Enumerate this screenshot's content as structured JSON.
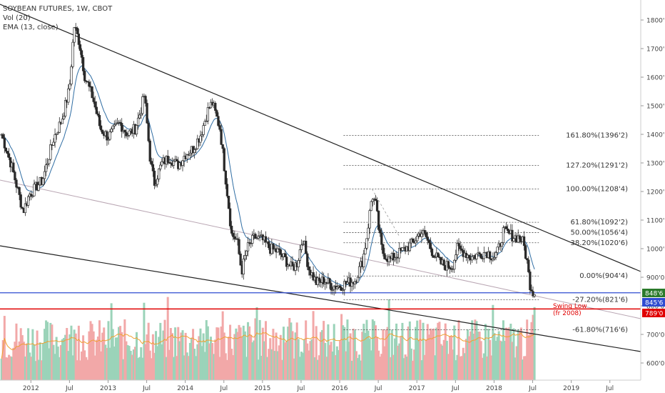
{
  "header": {
    "title": "SOYBEAN FUTURES, 1W, CBOT",
    "vol": "Vol (20)",
    "ema": "EMA (13, close)"
  },
  "colors": {
    "up": "#9bd3b9",
    "down": "#f2a8a8",
    "candle": "#2a2a2a",
    "ema": "#2f6da3",
    "vol_ma": "#f0a030",
    "support_blue": "#2e4bd1",
    "swing_red": "#e00000",
    "price_tag_green": "#2b7a2b"
  },
  "chart_data": {
    "type": "candlestick",
    "title": "SOYBEAN FUTURES, 1W, CBOT",
    "x_labels": [
      "2012",
      "Jul",
      "2013",
      "Jul",
      "2014",
      "Jul",
      "2015",
      "Jul",
      "2016",
      "Jul",
      "2017",
      "Jul",
      "2018",
      "Jul",
      "2019",
      "Jul"
    ],
    "y_labels": [
      "1800'0",
      "1700'0",
      "1600'0",
      "1500'0",
      "1400'0",
      "1300'0",
      "1200'0",
      "1100'0",
      "1000'0",
      "900'0",
      "800'0",
      "700'0",
      "600'0"
    ],
    "ylim": [
      570,
      1860
    ],
    "xlim": [
      2011.6,
      2019.9
    ],
    "grid": false,
    "price_path": [
      [
        2011.62,
        1400
      ],
      [
        2011.75,
        1290
      ],
      [
        2011.9,
        1130
      ],
      [
        2011.98,
        1190
      ],
      [
        2012.05,
        1210
      ],
      [
        2012.15,
        1240
      ],
      [
        2012.3,
        1390
      ],
      [
        2012.4,
        1450
      ],
      [
        2012.5,
        1560
      ],
      [
        2012.56,
        1780
      ],
      [
        2012.63,
        1720
      ],
      [
        2012.7,
        1600
      ],
      [
        2012.8,
        1530
      ],
      [
        2012.9,
        1420
      ],
      [
        2013.0,
        1390
      ],
      [
        2013.15,
        1440
      ],
      [
        2013.25,
        1400
      ],
      [
        2013.35,
        1420
      ],
      [
        2013.42,
        1480
      ],
      [
        2013.47,
        1540
      ],
      [
        2013.55,
        1300
      ],
      [
        2013.6,
        1230
      ],
      [
        2013.7,
        1300
      ],
      [
        2013.8,
        1320
      ],
      [
        2013.9,
        1290
      ],
      [
        2014.0,
        1330
      ],
      [
        2014.1,
        1350
      ],
      [
        2014.2,
        1400
      ],
      [
        2014.3,
        1490
      ],
      [
        2014.35,
        1510
      ],
      [
        2014.45,
        1420
      ],
      [
        2014.5,
        1300
      ],
      [
        2014.55,
        1180
      ],
      [
        2014.6,
        1050
      ],
      [
        2014.67,
        1030
      ],
      [
        2014.73,
        920
      ],
      [
        2014.8,
        1000
      ],
      [
        2014.9,
        1040
      ],
      [
        2015.0,
        1030
      ],
      [
        2015.1,
        1000
      ],
      [
        2015.2,
        990
      ],
      [
        2015.3,
        960
      ],
      [
        2015.38,
        930
      ],
      [
        2015.45,
        950
      ],
      [
        2015.52,
        1040
      ],
      [
        2015.6,
        930
      ],
      [
        2015.7,
        880
      ],
      [
        2015.8,
        890
      ],
      [
        2015.9,
        870
      ],
      [
        2016.0,
        870
      ],
      [
        2016.1,
        880
      ],
      [
        2016.2,
        890
      ],
      [
        2016.3,
        960
      ],
      [
        2016.35,
        1040
      ],
      [
        2016.42,
        1190
      ],
      [
        2016.47,
        1150
      ],
      [
        2016.5,
        1080
      ],
      [
        2016.55,
        990
      ],
      [
        2016.65,
        960
      ],
      [
        2016.75,
        980
      ],
      [
        2016.85,
        1000
      ],
      [
        2016.95,
        1020
      ],
      [
        2017.05,
        1060
      ],
      [
        2017.12,
        1040
      ],
      [
        2017.2,
        990
      ],
      [
        2017.3,
        950
      ],
      [
        2017.38,
        940
      ],
      [
        2017.46,
        940
      ],
      [
        2017.52,
        1000
      ],
      [
        2017.6,
        990
      ],
      [
        2017.7,
        970
      ],
      [
        2017.8,
        980
      ],
      [
        2017.9,
        990
      ],
      [
        2018.0,
        970
      ],
      [
        2018.05,
        990
      ],
      [
        2018.12,
        1060
      ],
      [
        2018.2,
        1050
      ],
      [
        2018.28,
        1040
      ],
      [
        2018.33,
        1040
      ],
      [
        2018.38,
        1020
      ],
      [
        2018.43,
        950
      ],
      [
        2018.46,
        880
      ],
      [
        2018.5,
        850
      ],
      [
        2018.53,
        845
      ]
    ],
    "trendlines": [
      {
        "name": "upper",
        "from": [
          2011.6,
          1855
        ],
        "to": [
          2019.9,
          920
        ]
      },
      {
        "name": "lower",
        "from": [
          2011.6,
          1010
        ],
        "to": [
          2019.9,
          640
        ]
      },
      {
        "name": "middle",
        "from": [
          2011.6,
          1240
        ],
        "to": [
          2019.9,
          755
        ]
      }
    ],
    "fib_levels": [
      {
        "label": "161.80%(1396'2)",
        "value": 1396.2
      },
      {
        "label": "127.20%(1291'2)",
        "value": 1291.2
      },
      {
        "label": "100.00%(1208'4)",
        "value": 1208.4
      },
      {
        "label": "61.80%(1092'2)",
        "value": 1092.2
      },
      {
        "label": "50.00%(1056'4)",
        "value": 1056.4
      },
      {
        "label": "38.20%(1020'6)",
        "value": 1020.6
      },
      {
        "label": "0.00%(904'4)",
        "value": 904.4
      },
      {
        "label": "-27.20%(821'6)",
        "value": 821.6
      },
      {
        "label": "-61.80%(716'6)",
        "value": 716.6
      }
    ],
    "horizontal_levels": [
      {
        "name": "current-price",
        "value": 848.6,
        "tag": "848'6"
      },
      {
        "name": "support",
        "value": 845.6,
        "tag": "845'6"
      },
      {
        "name": "swing-low",
        "value": 789.0,
        "tag": "789'0"
      }
    ],
    "annotations": [
      {
        "text": "Swing Low",
        "at": [
          2018.56,
          815
        ]
      },
      {
        "text": "(fr 2008)",
        "at": [
          2018.56,
          785
        ]
      }
    ],
    "volume": {
      "series_name": "Vol (20)",
      "ma": "Vol (20)"
    },
    "ema": {
      "period": 13,
      "source": "close"
    }
  }
}
